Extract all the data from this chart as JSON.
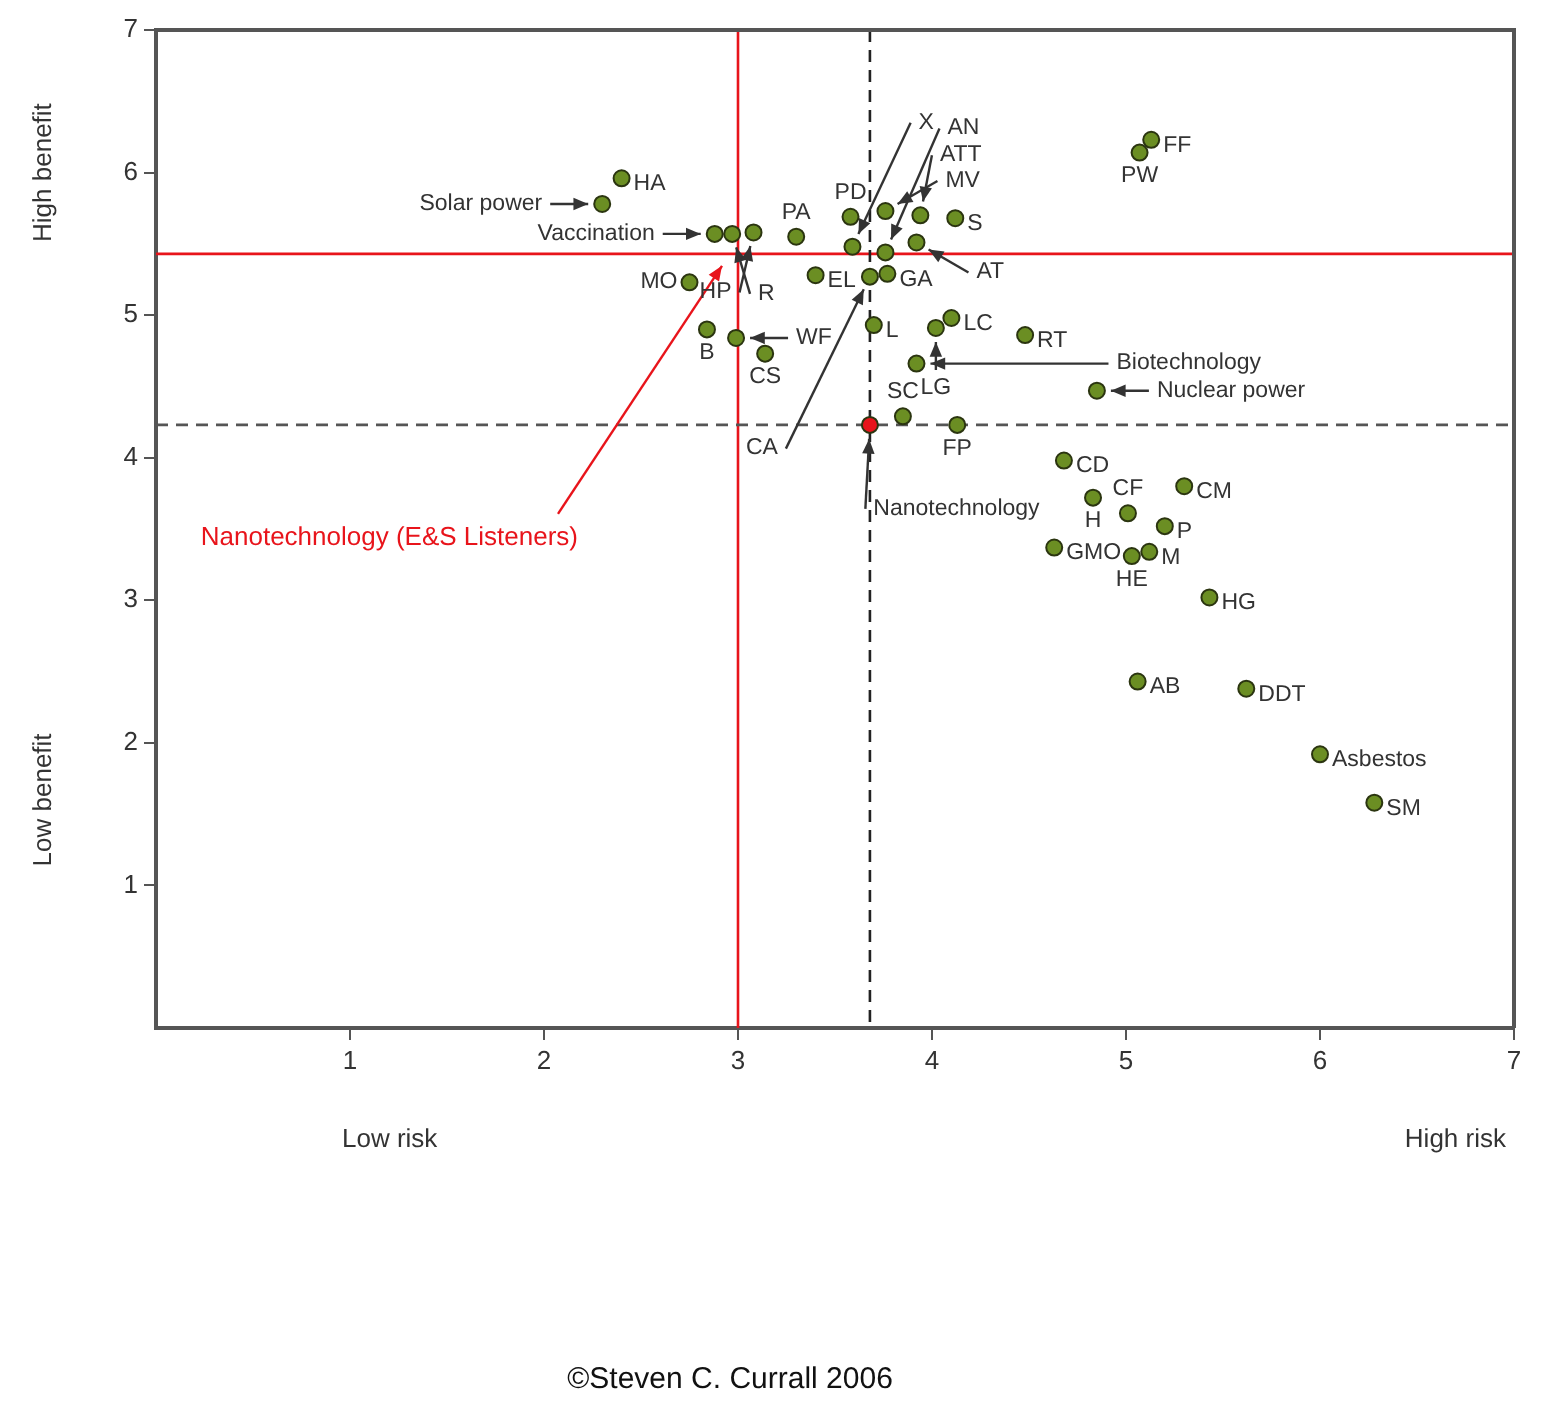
{
  "chart_data": {
    "type": "scatter",
    "marker": "circle",
    "xlim": [
      0,
      7
    ],
    "ylim": [
      0,
      7
    ],
    "xticks": [
      1,
      2,
      3,
      4,
      5,
      6,
      7
    ],
    "yticks": [
      1,
      2,
      3,
      4,
      5,
      6,
      7
    ],
    "series": [
      {
        "color": "#6b8e23",
        "x": [
          2.4,
          2.3,
          2.88,
          2.97,
          3.08,
          3.3,
          2.75,
          2.84,
          2.99,
          3.14,
          3.4,
          3.58,
          3.59,
          3.68,
          3.77,
          3.7,
          3.76,
          3.76,
          3.94,
          4.12,
          3.92,
          4.1,
          4.02,
          4.48,
          3.92,
          4.85,
          5.13,
          5.07,
          3.85,
          4.13,
          4.68,
          4.83,
          5.01,
          5.3,
          5.2,
          5.12,
          5.03,
          4.63,
          5.43,
          5.06,
          5.62,
          6.0,
          6.28
        ],
        "values": [
          5.96,
          5.78,
          5.57,
          5.57,
          5.58,
          5.55,
          5.23,
          4.9,
          4.84,
          4.73,
          5.28,
          5.69,
          5.48,
          5.27,
          5.29,
          4.93,
          5.73,
          5.44,
          5.7,
          5.68,
          5.51,
          4.98,
          4.91,
          4.86,
          4.66,
          4.47,
          6.23,
          6.14,
          4.29,
          4.23,
          3.98,
          3.72,
          3.61,
          3.8,
          3.52,
          3.34,
          3.31,
          3.37,
          3.02,
          2.43,
          2.38,
          1.92,
          1.58
        ]
      },
      {
        "color": "#e8141b",
        "x": [
          3.68
        ],
        "values": [
          4.23
        ]
      }
    ],
    "ref_lines": [
      {
        "axis": "x",
        "value": 3,
        "color": "#e8141b",
        "line_style": "solid",
        "label": "Nanotechnology (E&S Listeners)"
      },
      {
        "axis": "y",
        "value": 5.43,
        "color": "#e8141b",
        "line_style": "solid"
      },
      {
        "axis": "x",
        "value": 3.68,
        "color": "#222222",
        "line_style": "dashed"
      },
      {
        "axis": "y",
        "value": 4.23,
        "color": "#555555",
        "line_style": "dashed"
      }
    ],
    "annotations": [
      "High benefit",
      "Low benefit",
      "Low risk",
      "High risk",
      "©Steven C. Currall 2006",
      {
        "text": "HA",
        "x": 2.4,
        "y": 5.96
      },
      {
        "text": "Solar power",
        "x": 2.3,
        "y": 5.78
      },
      {
        "text": "Vaccination",
        "x": 2.88,
        "y": 5.57
      },
      {
        "text": "R",
        "x": 2.97,
        "y": 5.57
      },
      {
        "text": "HP",
        "x": 3.08,
        "y": 5.58
      },
      {
        "text": "PA",
        "x": 3.3,
        "y": 5.55
      },
      {
        "text": "MO",
        "x": 2.75,
        "y": 5.23
      },
      {
        "text": "B",
        "x": 2.84,
        "y": 4.9
      },
      {
        "text": "WF",
        "x": 2.99,
        "y": 4.84
      },
      {
        "text": "CS",
        "x": 3.14,
        "y": 4.73
      },
      {
        "text": "EL",
        "x": 3.4,
        "y": 5.28
      },
      {
        "text": "PD",
        "x": 3.58,
        "y": 5.69
      },
      {
        "text": "X",
        "x": 3.59,
        "y": 5.48
      },
      {
        "text": "CA",
        "x": 3.68,
        "y": 5.27
      },
      {
        "text": "GA",
        "x": 3.77,
        "y": 5.29
      },
      {
        "text": "L",
        "x": 3.7,
        "y": 4.93
      },
      {
        "text": "MV",
        "x": 3.76,
        "y": 5.73
      },
      {
        "text": "AN",
        "x": 3.76,
        "y": 5.44
      },
      {
        "text": "ATT",
        "x": 3.94,
        "y": 5.7
      },
      {
        "text": "S",
        "x": 4.12,
        "y": 5.68
      },
      {
        "text": "AT",
        "x": 3.92,
        "y": 5.51
      },
      {
        "text": "LC",
        "x": 4.1,
        "y": 4.98
      },
      {
        "text": "LG",
        "x": 4.02,
        "y": 4.91
      },
      {
        "text": "RT",
        "x": 4.48,
        "y": 4.86
      },
      {
        "text": "Biotechnology",
        "x": 3.92,
        "y": 4.66
      },
      {
        "text": "Nuclear power",
        "x": 4.85,
        "y": 4.47
      },
      {
        "text": "FF",
        "x": 5.13,
        "y": 6.23
      },
      {
        "text": "PW",
        "x": 5.07,
        "y": 6.14
      },
      {
        "text": "SC",
        "x": 3.85,
        "y": 4.29
      },
      {
        "text": "FP",
        "x": 4.13,
        "y": 4.23
      },
      {
        "text": "CD",
        "x": 4.68,
        "y": 3.98
      },
      {
        "text": "H",
        "x": 4.83,
        "y": 3.72
      },
      {
        "text": "CF",
        "x": 5.01,
        "y": 3.61
      },
      {
        "text": "CM",
        "x": 5.3,
        "y": 3.8
      },
      {
        "text": "P",
        "x": 5.2,
        "y": 3.52
      },
      {
        "text": "M",
        "x": 5.12,
        "y": 3.34
      },
      {
        "text": "HE",
        "x": 5.03,
        "y": 3.31
      },
      {
        "text": "GMO",
        "x": 4.63,
        "y": 3.37
      },
      {
        "text": "HG",
        "x": 5.43,
        "y": 3.02
      },
      {
        "text": "AB",
        "x": 5.06,
        "y": 2.43
      },
      {
        "text": "DDT",
        "x": 5.62,
        "y": 2.38
      },
      {
        "text": "Asbestos",
        "x": 6.0,
        "y": 1.92
      },
      {
        "text": "SM",
        "x": 6.28,
        "y": 1.58
      },
      {
        "text": "Nanotechnology",
        "x": 3.68,
        "y": 4.23
      }
    ]
  }
}
